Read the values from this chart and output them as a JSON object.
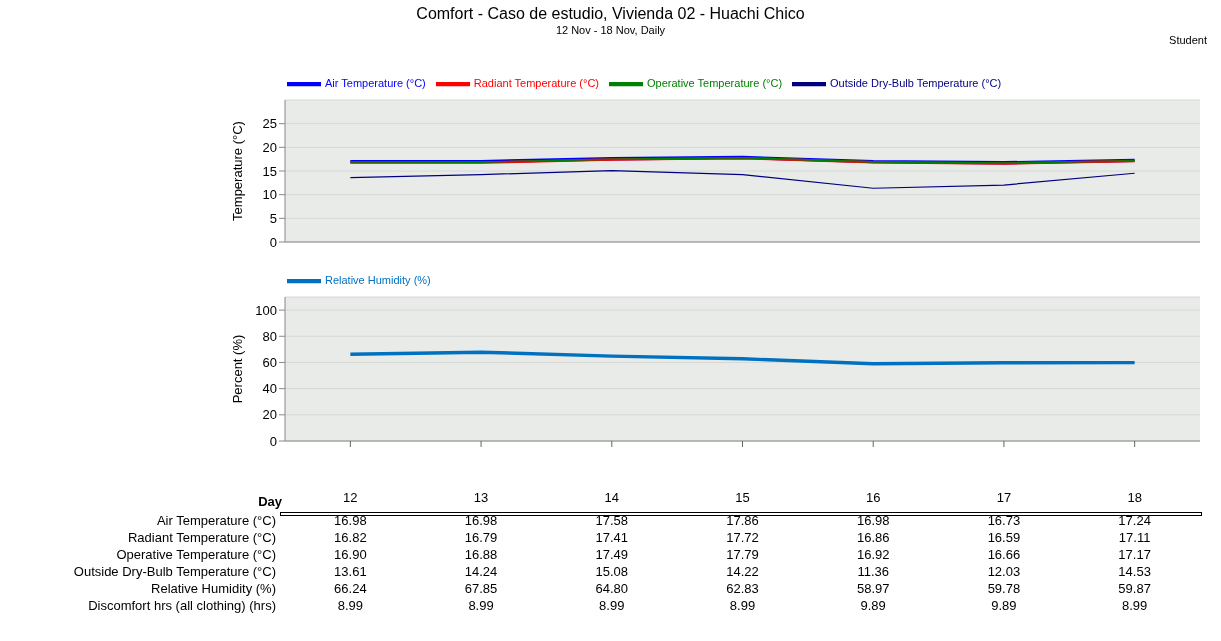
{
  "chart_data": [
    {
      "type": "line",
      "title": "Comfort - Caso de estudio, Vivienda 02 - Huachi Chico",
      "subtitle": "12 Nov - 18 Nov, Daily",
      "annotations": [
        "Student"
      ],
      "ylabel": "Temperature (°C)",
      "categories": [
        "12",
        "13",
        "14",
        "15",
        "16",
        "17",
        "18"
      ],
      "ylim": [
        0,
        30
      ],
      "yticks": [
        0,
        5,
        10,
        15,
        20,
        25
      ],
      "grid": "y",
      "legend": "top",
      "tick_labels": "y",
      "series": [
        {
          "name": "Air Temperature (°C)",
          "color": "#0000ff",
          "values": [
            16.98,
            16.98,
            17.58,
            17.86,
            16.98,
            16.73,
            17.24
          ],
          "value_labels": [
            "16.98",
            "16.98",
            "17.58",
            "17.86",
            "16.98",
            "16.73",
            "17.24"
          ]
        },
        {
          "name": "Radiant Temperature (°C)",
          "color": "#ff0000",
          "values": [
            16.82,
            16.79,
            17.41,
            17.72,
            16.86,
            16.59,
            17.11
          ],
          "value_labels": [
            "16.82",
            "16.79",
            "17.41",
            "17.72",
            "16.86",
            "16.59",
            "17.11"
          ]
        },
        {
          "name": "Operative Temperature (°C)",
          "color": "#008000",
          "values": [
            16.9,
            16.88,
            17.49,
            17.79,
            16.92,
            16.66,
            17.17
          ],
          "value_labels": [
            "16.90",
            "16.88",
            "17.49",
            "17.79",
            "16.92",
            "16.66",
            "17.17"
          ]
        },
        {
          "name": "Outside Dry-Bulb Temperature (°C)",
          "color": "#000080",
          "values": [
            13.61,
            14.24,
            15.08,
            14.22,
            11.36,
            12.03,
            14.53
          ],
          "value_labels": [
            "13.61",
            "14.24",
            "15.08",
            "14.22",
            "11.36",
            "12.03",
            "14.53"
          ]
        }
      ]
    },
    {
      "type": "line",
      "ylabel": "Percent (%)",
      "xlabel": "Day",
      "categories": [
        "12",
        "13",
        "14",
        "15",
        "16",
        "17",
        "18"
      ],
      "ylim": [
        0,
        110
      ],
      "yticks": [
        0,
        20,
        40,
        60,
        80,
        100
      ],
      "grid": "y",
      "legend": "top",
      "series": [
        {
          "name": "Relative Humidity (%)",
          "color": "#0070c0",
          "values": [
            66.24,
            67.85,
            64.8,
            62.83,
            58.97,
            59.78,
            59.87
          ],
          "value_labels": [
            "66.24",
            "67.85",
            "64.80",
            "62.83",
            "58.97",
            "59.78",
            "59.87"
          ]
        }
      ]
    },
    {
      "type": "other",
      "series": [
        {
          "name": "Discomfort hrs (all clothing) (hrs)",
          "values": [
            8.99,
            8.99,
            8.99,
            8.99,
            9.89,
            9.89,
            8.99
          ],
          "value_labels": [
            "8.99",
            "8.99",
            "8.99",
            "8.99",
            "9.89",
            "9.89",
            "8.99"
          ]
        }
      ]
    }
  ]
}
